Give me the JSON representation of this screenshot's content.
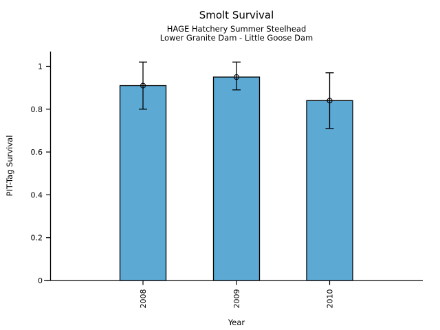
{
  "chart_data": {
    "type": "bar",
    "title": "Smolt Survival",
    "subtitle": [
      "HAGE Hatchery Summer Steelhead",
      "Lower Granite Dam - Little Goose Dam"
    ],
    "categories": [
      "2008",
      "2009",
      "2010"
    ],
    "values": [
      0.91,
      0.95,
      0.84
    ],
    "error_low": [
      0.8,
      0.89,
      0.71
    ],
    "error_high": [
      1.02,
      1.02,
      0.97
    ],
    "xlabel": "Year",
    "ylabel": "PIT-Tag Survival",
    "ylim": [
      0,
      1.07
    ],
    "yticks": [
      0,
      0.2,
      0.4,
      0.6,
      0.8,
      1
    ],
    "ytick_labels": [
      "0",
      "0.2",
      "0.4",
      "0.6",
      "0.8",
      "1"
    ],
    "x_tick_rotation": 90,
    "grid": false,
    "legend": null,
    "error_marker": "open-circle",
    "bar_fill_color": "#5CA9D4",
    "bar_edge_color": "#000000",
    "axis_color": "#000000"
  }
}
